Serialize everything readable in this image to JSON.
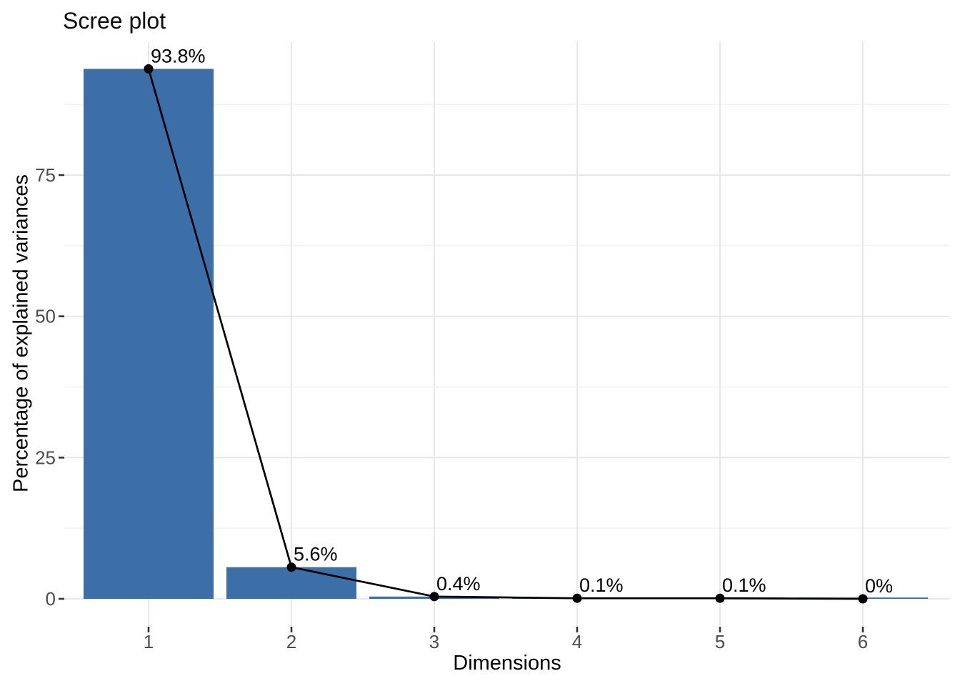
{
  "page": {
    "background": "#ffffff"
  },
  "chart_data": {
    "type": "bar",
    "title": "Scree plot",
    "xlabel": "Dimensions",
    "ylabel": "Percentage of explained variances",
    "categories": [
      "1",
      "2",
      "3",
      "4",
      "5",
      "6"
    ],
    "values": [
      93.8,
      5.6,
      0.4,
      0.1,
      0.1,
      0
    ],
    "point_labels": [
      "93.8%",
      "5.6%",
      "0.4%",
      "0.1%",
      "0.1%",
      "0%"
    ],
    "series": [
      {
        "name": "Percentage of explained variances",
        "values": [
          93.8,
          5.6,
          0.4,
          0.1,
          0.1,
          0
        ]
      }
    ],
    "overlay": "line-with-points",
    "y_ticks": [
      0,
      25,
      50,
      75
    ],
    "y_minor_ticks": [
      12.5,
      37.5,
      62.5,
      87.5
    ],
    "ylim": [
      0,
      98.5
    ],
    "grid": true,
    "legend_position": "none",
    "colors": {
      "bar_fill": "#3c6ea8",
      "line": "#000000",
      "point": "#000000",
      "grid_major": "#e7e7e7",
      "grid_minor": "#f1f1f1",
      "tick_mark": "#333333",
      "tick_label": "#4d4d4d",
      "label_text": "#000000"
    }
  }
}
